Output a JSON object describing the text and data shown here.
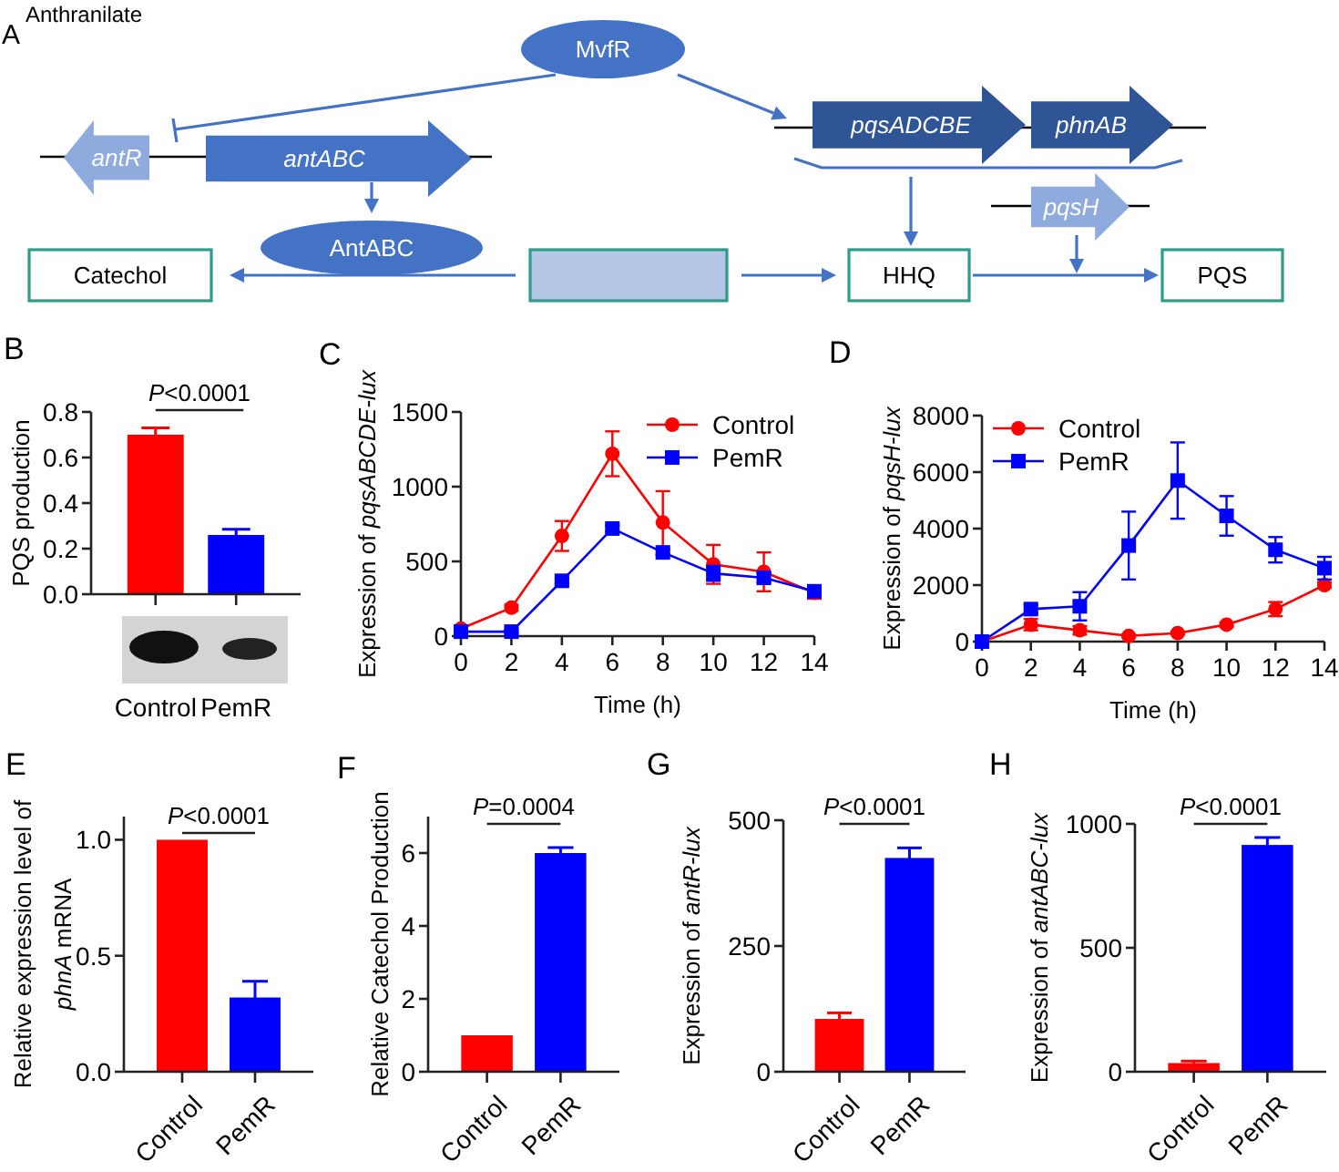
{
  "chart_data": [
    {
      "type": "other",
      "title": "A",
      "annotations": [
        "Anthranilate",
        "MvfR",
        "antR",
        "antABC",
        "AntABC",
        "pqsADCBE",
        "phnAB",
        "pqsH",
        "Catechol",
        "HHQ",
        "PQS"
      ]
    },
    {
      "type": "bar",
      "title": "B",
      "ylabel": "PQS production",
      "categories": [
        "Control",
        "PemR"
      ],
      "values": [
        0.7,
        0.26
      ],
      "colors": [
        "#ff0000",
        "#0000ff"
      ],
      "errors": [
        0.03,
        0.025
      ],
      "ylim": [
        0,
        0.8
      ],
      "yticks": [
        {
          "value": 0,
          "label": "0.0"
        },
        {
          "value": 0.2,
          "label": "0.2"
        },
        {
          "value": 0.4,
          "label": "0.4"
        },
        {
          "value": 0.6,
          "label": "0.6"
        },
        {
          "value": 0.8,
          "label": "0.8"
        }
      ],
      "annotations": [
        "P<0.0001"
      ]
    },
    {
      "type": "line",
      "title": "C",
      "xlabel": "Time (h)",
      "ylabel": "Expression of pqsABCDE-lux",
      "x": [
        0,
        2,
        4,
        6,
        8,
        10,
        12,
        14
      ],
      "xlim": [
        0,
        14
      ],
      "xticks": [
        0,
        2,
        4,
        6,
        8,
        10,
        12,
        14
      ],
      "ylim": [
        0,
        1500
      ],
      "yticks": [
        0,
        500,
        1000,
        1500
      ],
      "legend": "top right",
      "series": [
        {
          "name": "Control",
          "color": "#ff0000",
          "marker": "circle",
          "values": [
            50,
            190,
            670,
            1220,
            760,
            480,
            430,
            290
          ],
          "errors": [
            20,
            20,
            100,
            150,
            210,
            130,
            130,
            40
          ]
        },
        {
          "name": "PemR",
          "color": "#0000ff",
          "marker": "square",
          "values": [
            30,
            30,
            370,
            720,
            560,
            420,
            390,
            300
          ],
          "errors": [
            10,
            10,
            20,
            20,
            20,
            50,
            30,
            30
          ]
        }
      ]
    },
    {
      "type": "line",
      "title": "D",
      "xlabel": "Time (h)",
      "ylabel": "Expression of pqsH-lux",
      "x": [
        0,
        2,
        4,
        6,
        8,
        10,
        12,
        14
      ],
      "xlim": [
        0,
        14
      ],
      "xticks": [
        0,
        2,
        4,
        6,
        8,
        10,
        12,
        14
      ],
      "ylim": [
        0,
        8000
      ],
      "yticks": [
        0,
        2000,
        4000,
        6000,
        8000
      ],
      "legend": "top left",
      "series": [
        {
          "name": "Control",
          "color": "#ff0000",
          "marker": "circle",
          "values": [
            0,
            600,
            400,
            200,
            300,
            600,
            1150,
            2000
          ],
          "errors": [
            50,
            200,
            150,
            50,
            50,
            80,
            250,
            100
          ]
        },
        {
          "name": "PemR",
          "color": "#0000ff",
          "marker": "square",
          "values": [
            0,
            1150,
            1250,
            3400,
            5700,
            4450,
            3250,
            2600
          ],
          "errors": [
            50,
            150,
            500,
            1200,
            1350,
            700,
            450,
            400
          ]
        }
      ]
    },
    {
      "type": "bar",
      "title": "E",
      "ylabel": "Relative expression level of phnA mRNA",
      "categories": [
        "Control",
        "PemR"
      ],
      "values": [
        1.0,
        0.32
      ],
      "colors": [
        "#ff0000",
        "#0000ff"
      ],
      "errors": [
        null,
        0.07
      ],
      "ylim": [
        0,
        1.1
      ],
      "yticks": [
        {
          "value": 0,
          "label": "0.0"
        },
        {
          "value": 0.5,
          "label": "0.5"
        },
        {
          "value": 1,
          "label": "1.0"
        }
      ],
      "annotations": [
        "P<0.0001"
      ]
    },
    {
      "type": "bar",
      "title": "F",
      "ylabel": "Relative Catechol Production",
      "categories": [
        "Control",
        "PemR"
      ],
      "values": [
        1,
        6.0
      ],
      "colors": [
        "#ff0000",
        "#0000ff"
      ],
      "errors": [
        null,
        0.15
      ],
      "ylim": [
        0,
        7
      ],
      "yticks": [
        0,
        2,
        4,
        6
      ],
      "annotations": [
        "P=0.0004"
      ]
    },
    {
      "type": "bar",
      "title": "G",
      "ylabel": "Expression of antR-lux",
      "categories": [
        "Control",
        "PemR"
      ],
      "values": [
        105,
        425
      ],
      "colors": [
        "#ff0000",
        "#0000ff"
      ],
      "errors": [
        12,
        20
      ],
      "ylim": [
        0,
        500
      ],
      "yticks": [
        0,
        250,
        500
      ],
      "annotations": [
        "P<0.0001"
      ]
    },
    {
      "type": "bar",
      "title": "H",
      "ylabel": "Expression of antABC-lux",
      "categories": [
        "Control",
        "PemR"
      ],
      "values": [
        35,
        915
      ],
      "colors": [
        "#ff0000",
        "#0000ff"
      ],
      "errors": [
        8,
        30
      ],
      "ylim": [
        0,
        1000
      ],
      "yticks": [
        0,
        500,
        1000
      ],
      "annotations": [
        "P<0.0001"
      ]
    }
  ]
}
